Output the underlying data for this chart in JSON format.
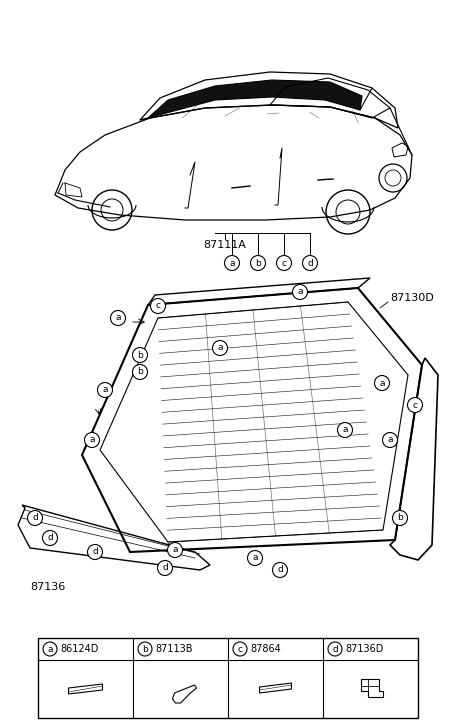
{
  "bg_color": "#ffffff",
  "parts_legend": [
    {
      "label": "a",
      "code": "86124D"
    },
    {
      "label": "b",
      "code": "87113B"
    },
    {
      "label": "c",
      "code": "87864"
    },
    {
      "label": "d",
      "code": "87136D"
    }
  ],
  "part_numbers": {
    "car": "87111A",
    "glass": "87130D",
    "moulding": "87136"
  },
  "line_color": "#000000",
  "text_color": "#000000"
}
